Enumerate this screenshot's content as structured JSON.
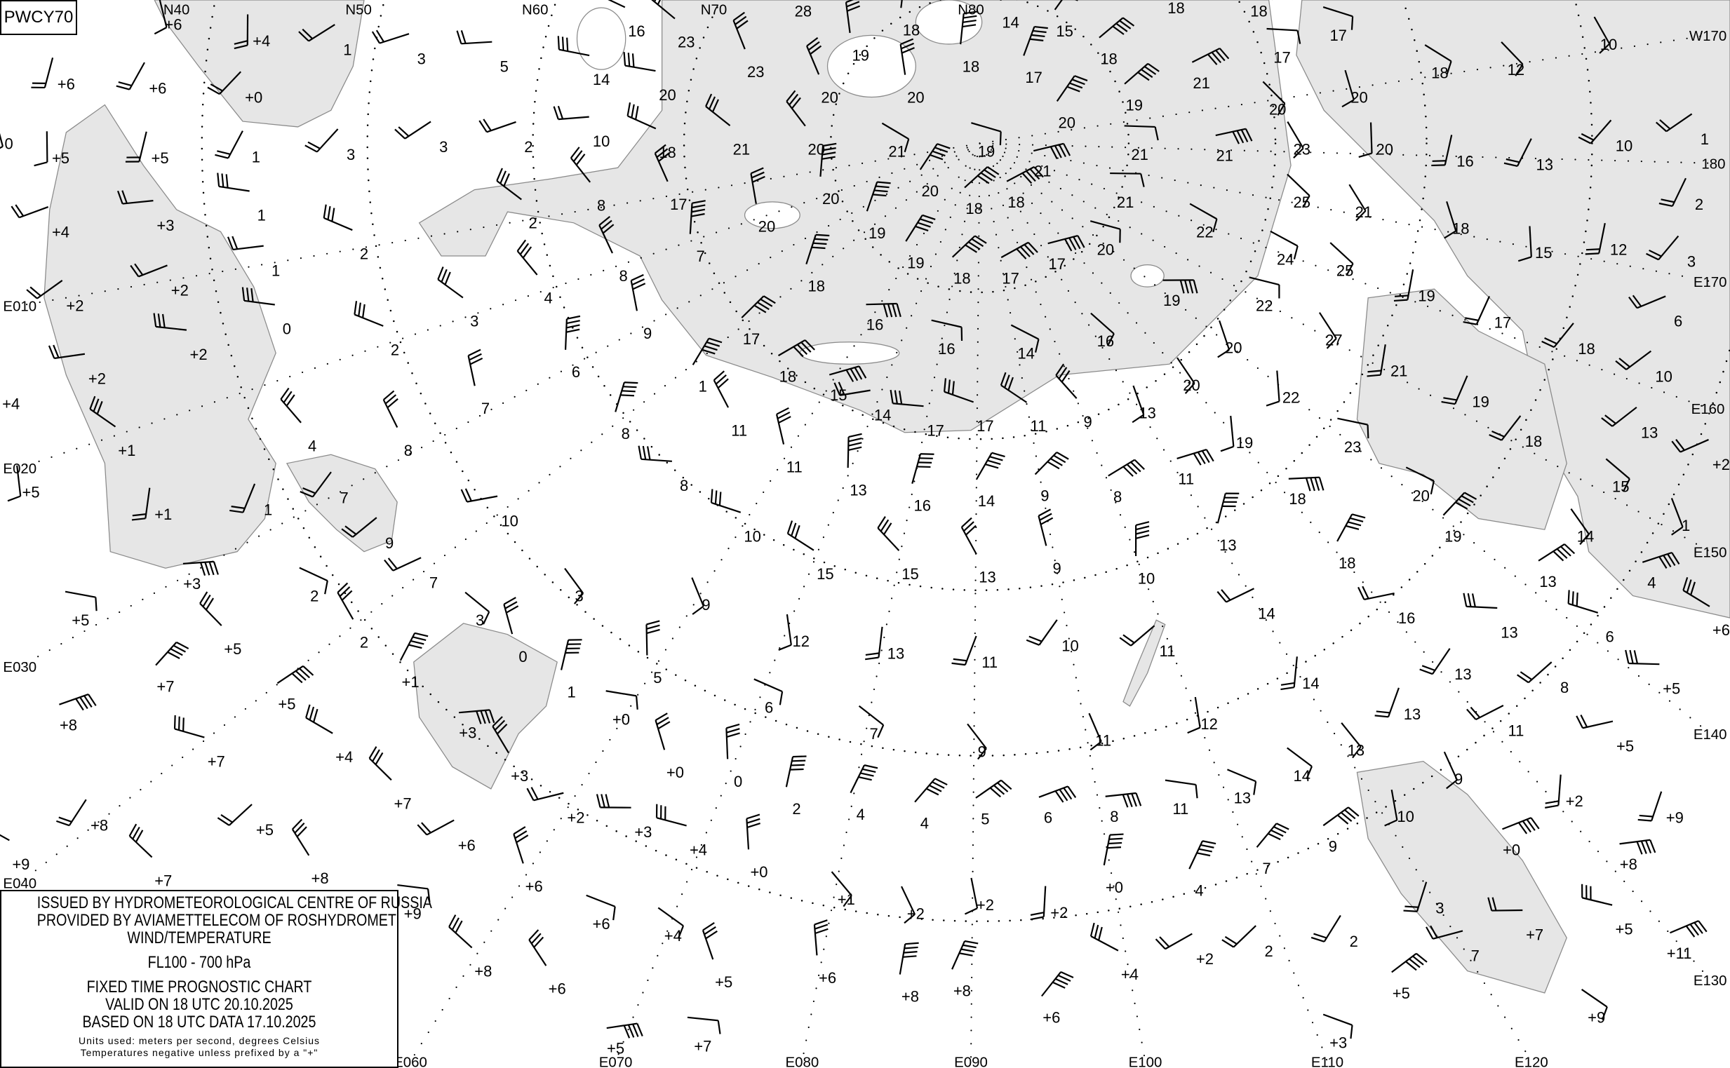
{
  "chart_code": "PWCY70",
  "legend": {
    "line1": "ISSUED BY HYDROMETEOROLOGICAL CENTRE OF RUSSIA",
    "line2": "PROVIDED BY AVIAMETTELECOM OF ROSHYDROMET",
    "line3": "WIND/TEMPERATURE",
    "level": "FL100 - 700 hPa",
    "chart_type": "FIXED TIME PROGNOSTIC CHART",
    "valid": "VALID ON 18 UTC 20.10.2025",
    "based": "BASED ON 18 UTC DATA 17.10.2025",
    "units": "Units used: meters per second, degrees Celsius",
    "note": "Temperatures negative unless prefixed by a \"+\""
  },
  "colors": {
    "sea": "#e6e6e6",
    "land": "#ffffff",
    "coast": "#8a8a8a",
    "ink": "#000000"
  },
  "grid_labels": [
    "N40",
    "N50",
    "N60",
    "N70",
    "N80",
    "W170",
    "180",
    "E170",
    "E160",
    "E150",
    "E140",
    "E130",
    "E120",
    "E110",
    "E100",
    "E090",
    "E080",
    "E070",
    "E060",
    "E040",
    "E030",
    "E020",
    "E010"
  ],
  "temperatures": [
    "+6",
    "+4",
    "+6",
    "+6",
    "+0",
    "1",
    "3",
    "5",
    "14",
    "16",
    "23",
    "28",
    "23",
    "19",
    "18",
    "14",
    "15",
    "18",
    "18",
    "18",
    "17",
    "17",
    "18",
    "12",
    "10",
    "0",
    "+5",
    "+5",
    "1",
    "3",
    "3",
    "2",
    "10",
    "20",
    "18",
    "21",
    "20",
    "20",
    "20",
    "18",
    "17",
    "20",
    "19",
    "21",
    "21",
    "21",
    "19",
    "21",
    "20",
    "23",
    "20",
    "20",
    "16",
    "13",
    "10",
    "1",
    "+4",
    "+3",
    "1",
    "2",
    "2",
    "8",
    "17",
    "20",
    "20",
    "19",
    "20",
    "18",
    "18",
    "21",
    "21",
    "20",
    "22",
    "25",
    "21",
    "18",
    "15",
    "12",
    "2",
    "3",
    "+2",
    "+2",
    "1",
    "0",
    "2",
    "3",
    "4",
    "8",
    "9",
    "7",
    "18",
    "19",
    "18",
    "17",
    "17",
    "19",
    "22",
    "24",
    "25",
    "27",
    "20",
    "22",
    "19",
    "17",
    "18",
    "10",
    "6",
    "+2",
    "+2",
    "+4",
    "+1",
    "4",
    "8",
    "7",
    "6",
    "8",
    "1",
    "17",
    "18",
    "15",
    "16",
    "16",
    "14",
    "16",
    "20",
    "13",
    "19",
    "21",
    "19",
    "18",
    "13",
    "+2",
    "14",
    "17",
    "17",
    "11",
    "9",
    "11",
    "11",
    "13",
    "16",
    "14",
    "9",
    "8",
    "11",
    "18",
    "23",
    "20",
    "15",
    "14",
    "1",
    "+5",
    "+1",
    "1",
    "7",
    "9",
    "7",
    "10",
    "8",
    "10",
    "15",
    "15",
    "13",
    "9",
    "10",
    "13",
    "18",
    "19",
    "13",
    "4",
    "+3",
    "+5",
    "2",
    "3",
    "3",
    "9",
    "12",
    "13",
    "11",
    "10",
    "11",
    "14",
    "16",
    "13",
    "6",
    "+6",
    "+5",
    "2",
    "0",
    "5",
    "1",
    "+1",
    "+7",
    "+5",
    "+8",
    "+3",
    "+0",
    "6",
    "7",
    "9",
    "11",
    "12",
    "14",
    "13",
    "13",
    "8",
    "11",
    "+5",
    "+5",
    "+7",
    "+4",
    "+7",
    "+3",
    "+0",
    "0",
    "2",
    "4",
    "4",
    "5",
    "6",
    "8",
    "11",
    "13",
    "14",
    "13",
    "9",
    "10",
    "+2",
    "+9",
    "+8",
    "+5",
    "+6",
    "+2",
    "+3",
    "+4",
    "+9",
    "+7",
    "+8",
    "+6",
    "+0",
    "+0",
    "4",
    "7",
    "9",
    "+0",
    "+8",
    "+9",
    "+6",
    "+4",
    "+1",
    "+2",
    "+2",
    "+2",
    "3",
    "2",
    "2",
    "+2",
    "7",
    "+7",
    "+5",
    "+4",
    "+8",
    "+6",
    "+5",
    "+6",
    "+8",
    "+8",
    "+6",
    "+5",
    "+11",
    "+5",
    "+7",
    "+3",
    "+9"
  ]
}
